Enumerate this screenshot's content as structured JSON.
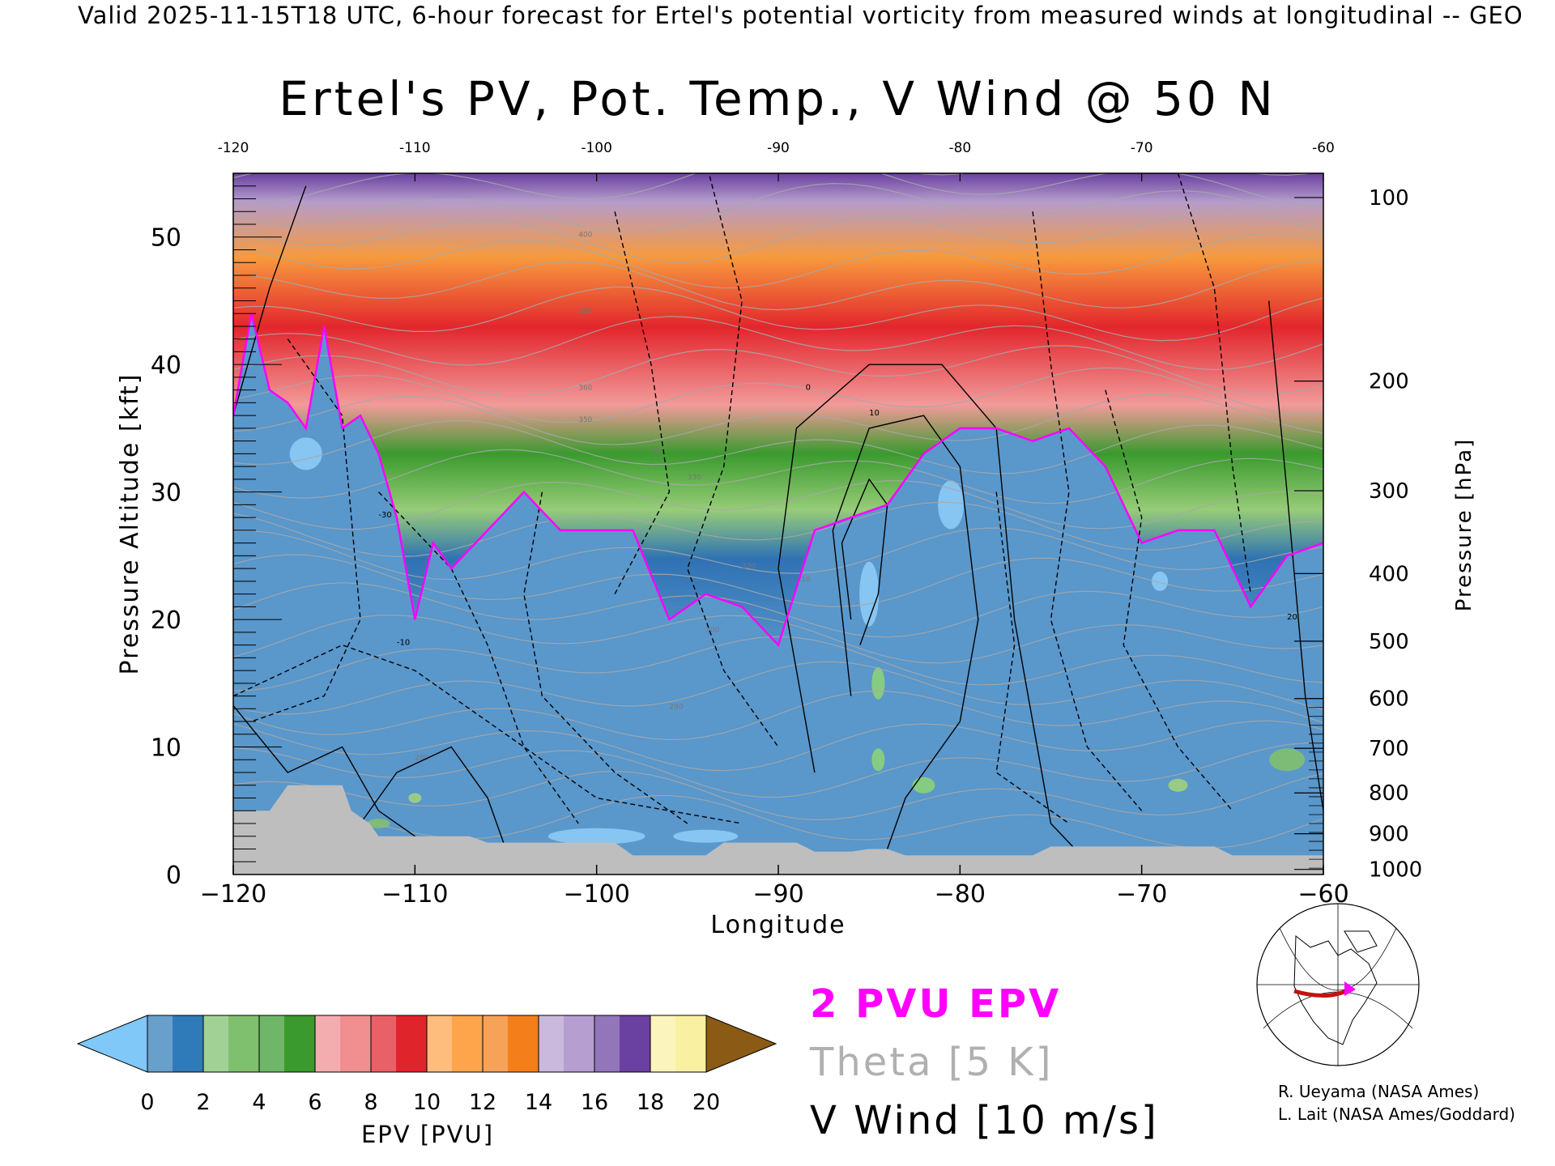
{
  "header": "Valid 2025-11-15T18 UTC, 6-hour forecast for Ertel's potential vorticity from measured winds at longitudinal -- GEO",
  "chart_data": {
    "type": "heatmap",
    "title": "Ertel's PV, Pot. Temp., V Wind @ 50 N",
    "xlabel": "Longitude",
    "ylabel": "Pressure Altitude [kft]",
    "y2label": "Pressure [hPa]",
    "xlim": [
      -120,
      -60
    ],
    "ylim": [
      0,
      55
    ],
    "x_ticks": [
      -120,
      -110,
      -100,
      -90,
      -80,
      -70,
      -60
    ],
    "x_tick_labels": [
      "−120",
      "−110",
      "−100",
      "−90",
      "−80",
      "−70",
      "−60"
    ],
    "top_ticks": [
      -120,
      -110,
      -100,
      -90,
      -80,
      -70,
      -60
    ],
    "top_tick_labels": [
      "-120",
      "-110",
      "-100",
      "-90",
      "-80",
      "-70",
      "-60"
    ],
    "y_ticks": [
      0,
      10,
      20,
      30,
      40,
      50
    ],
    "y_tick_labels": [
      "0",
      "10",
      "20",
      "30",
      "40",
      "50"
    ],
    "pressure_ticks": [
      {
        "hpa": 100,
        "kft": 53.1
      },
      {
        "hpa": 200,
        "kft": 38.7
      },
      {
        "hpa": 300,
        "kft": 30.1
      },
      {
        "hpa": 400,
        "kft": 23.6
      },
      {
        "hpa": 500,
        "kft": 18.3
      },
      {
        "hpa": 600,
        "kft": 13.8
      },
      {
        "hpa": 700,
        "kft": 9.9
      },
      {
        "hpa": 800,
        "kft": 6.4
      },
      {
        "hpa": 900,
        "kft": 3.2
      },
      {
        "hpa": 1000,
        "kft": 0.4
      }
    ],
    "pressure_tick_labels": [
      "100",
      "200",
      "300",
      "400",
      "500",
      "600",
      "700",
      "800",
      "900",
      "1000"
    ],
    "colorbar": {
      "label": "EPV [PVU]",
      "ticks": [
        0,
        2,
        4,
        6,
        8,
        10,
        12,
        14,
        16,
        18,
        20
      ],
      "tick_labels": [
        "0",
        "2",
        "4",
        "6",
        "8",
        "10",
        "12",
        "14",
        "16",
        "18",
        "20"
      ],
      "colors": [
        "#2f7ab8",
        "#7fc06e",
        "#3a9a2e",
        "#f08e90",
        "#e0242c",
        "#fea44a",
        "#f47e1a",
        "#b69ed0",
        "#6a40a0",
        "#faf0a2"
      ],
      "under_color": "#7fc8f8",
      "over_color": "#8b5a14"
    },
    "pv_2pvu_height_kft": {
      "lon": [
        -120,
        -119,
        -118,
        -117,
        -116,
        -115,
        -114,
        -113,
        -112,
        -111,
        -110,
        -109,
        -108,
        -106,
        -104,
        -102,
        -100,
        -98,
        -96,
        -94,
        -92,
        -90,
        -88,
        -86,
        -84,
        -82,
        -80,
        -78,
        -76,
        -74,
        -72,
        -70,
        -68,
        -66,
        -64,
        -62,
        -60
      ],
      "kft": [
        36,
        44,
        38,
        37,
        35,
        43,
        35,
        36,
        33,
        28,
        20,
        26,
        24,
        27,
        30,
        27,
        27,
        27,
        20,
        22,
        21,
        18,
        27,
        28,
        29,
        33,
        35,
        35,
        34,
        35,
        32,
        26,
        27,
        27,
        21,
        25,
        26
      ]
    },
    "contours": {
      "v_wind_interval_ms": 10,
      "theta_interval_K": 5,
      "theta_labels": [
        "400",
        "380",
        "360",
        "350",
        "340",
        "330",
        "320",
        "310",
        "300",
        "290",
        "280"
      ],
      "v_wind_labels": [
        "10",
        "-10",
        "0",
        "-30",
        "20"
      ]
    },
    "grid": false
  },
  "legend": {
    "pv_label": "2 PVU EPV",
    "pv_color": "#ff00ff",
    "theta_label": "Theta [5 K]",
    "theta_color": "#b0b0b0",
    "wind_label": "V Wind [10 m/s]",
    "wind_color": "#000000"
  },
  "credits": [
    "R. Ueyama (NASA Ames)",
    "L. Lait (NASA Ames/Goddard)"
  ],
  "colors": {
    "terrain": "#bebebe",
    "ocean_fill": "#ffffff"
  }
}
